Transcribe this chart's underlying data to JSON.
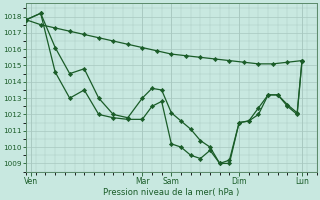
{
  "bg_color": "#c8e8e0",
  "grid_color": "#a8c8c0",
  "line_color": "#1a5c28",
  "marker_color": "#1a5c28",
  "xlabel": "Pression niveau de la mer( hPa )",
  "ylim": [
    1008.5,
    1018.8
  ],
  "yticks": [
    1009,
    1010,
    1011,
    1012,
    1013,
    1014,
    1015,
    1016,
    1017,
    1018
  ],
  "xlim": [
    0,
    30
  ],
  "xtick_labels": [
    "Ven",
    "Mar",
    "Sam",
    "Dim",
    "Lun"
  ],
  "xtick_positions": [
    0.5,
    12,
    15,
    22,
    28.5
  ],
  "series1_x": [
    0,
    1.5,
    3,
    4.5,
    6,
    7.5,
    9,
    10.5,
    12,
    13.5,
    15,
    16.5,
    18,
    19.5,
    21,
    22.5,
    24,
    25.5,
    27,
    28.5
  ],
  "series1_y": [
    1017.8,
    1017.5,
    1017.3,
    1017.1,
    1016.9,
    1016.7,
    1016.5,
    1016.3,
    1016.1,
    1015.9,
    1015.7,
    1015.6,
    1015.5,
    1015.4,
    1015.3,
    1015.2,
    1015.1,
    1015.1,
    1015.2,
    1015.3
  ],
  "series2_x": [
    0,
    1.5,
    3,
    4.5,
    6,
    7.5,
    9,
    10.5,
    12,
    13,
    14,
    15,
    16,
    17,
    18,
    19,
    20,
    21,
    22,
    23,
    24,
    25,
    26,
    27,
    28,
    28.5
  ],
  "series2_y": [
    1017.8,
    1018.2,
    1016.1,
    1014.5,
    1014.8,
    1013.0,
    1012.0,
    1011.8,
    1013.0,
    1013.6,
    1013.5,
    1012.1,
    1011.6,
    1011.1,
    1010.4,
    1010.0,
    1009.0,
    1009.2,
    1011.5,
    1011.6,
    1012.4,
    1013.2,
    1013.2,
    1012.6,
    1012.1,
    1015.3
  ],
  "series3_x": [
    0,
    1.5,
    3,
    4.5,
    6,
    7.5,
    9,
    10.5,
    12,
    13,
    14,
    15,
    16,
    17,
    18,
    19,
    20,
    21,
    22,
    23,
    24,
    25,
    26,
    27,
    28,
    28.5
  ],
  "series3_y": [
    1017.8,
    1018.2,
    1014.6,
    1013.0,
    1013.5,
    1012.0,
    1011.8,
    1011.7,
    1011.7,
    1012.5,
    1012.8,
    1010.2,
    1010.0,
    1009.5,
    1009.3,
    1009.8,
    1009.0,
    1009.0,
    1011.5,
    1011.6,
    1012.0,
    1013.2,
    1013.2,
    1012.5,
    1012.0,
    1015.3
  ]
}
